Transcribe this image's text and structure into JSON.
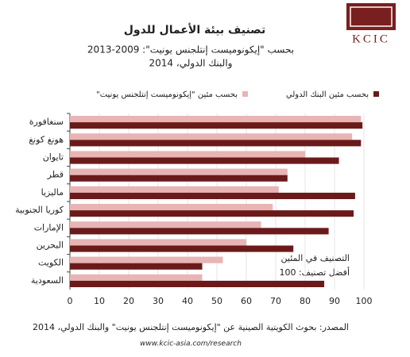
{
  "chart_data": {
    "type": "hbar",
    "title": "تصنيف بيئة الأعمال للدول",
    "subtitle": [
      "بحسب \"إيكونوميست إنتلجنس يونيت\": 2009-2013",
      "والبنك الدولي، 2014"
    ],
    "categories": [
      "سنغافورة",
      "هونغ كونغ",
      "تايوان",
      "قطر",
      "ماليزيا",
      "كوريا الجنوبية",
      "الإمارات",
      "البحرين",
      "الكويت",
      "السعودية"
    ],
    "series": [
      {
        "name": "بحسب مئين \"إيكونوميست إنتلجنس يونيت\"",
        "color": "#e8b4b4",
        "values": [
          99,
          96,
          80,
          74,
          71,
          69,
          65,
          60,
          52,
          45
        ]
      },
      {
        "name": "بحسب مئين البنك الدولي",
        "color": "#6b1a1a",
        "values": [
          99.5,
          99,
          91.5,
          74,
          97,
          96.5,
          88,
          76,
          45,
          86.5
        ]
      }
    ],
    "xlim": [
      0,
      100
    ],
    "xticks": [
      0,
      10,
      20,
      30,
      40,
      50,
      60,
      70,
      80,
      90,
      100
    ],
    "grid": true,
    "annotation": [
      "التصنيف في المئين",
      "أفضل تصنيف: 100"
    ],
    "source": "المصدر: بحوث الكويتية الصينية عن \"إيكونوميست إنتلجنس يونيت\" والبنك الدولي، 2014",
    "url": "www.kcic-asia.com/research"
  },
  "logo": {
    "text": "KCIC"
  }
}
